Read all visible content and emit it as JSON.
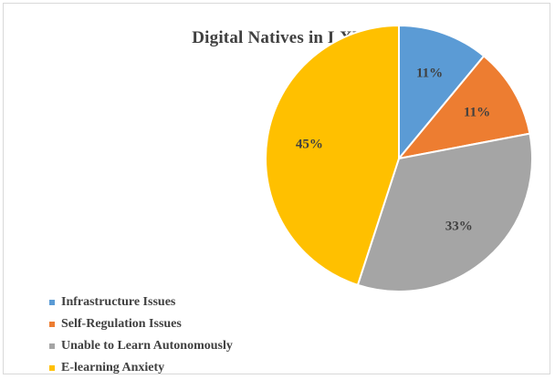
{
  "chart_data": {
    "type": "pie",
    "title": "Digital Natives in LXP",
    "categories": [
      "Infrastructure Issues",
      "Self-Regulation Issues",
      "Unable to Learn Autonomously",
      "E-learning Anxiety"
    ],
    "values": [
      11,
      11,
      33,
      45
    ],
    "data_labels": [
      "11%",
      "11%",
      "33%",
      "45%"
    ],
    "colors": [
      "#5b9bd5",
      "#ed7d31",
      "#a5a5a5",
      "#ffc000"
    ],
    "legend_position": "bottom-left"
  }
}
